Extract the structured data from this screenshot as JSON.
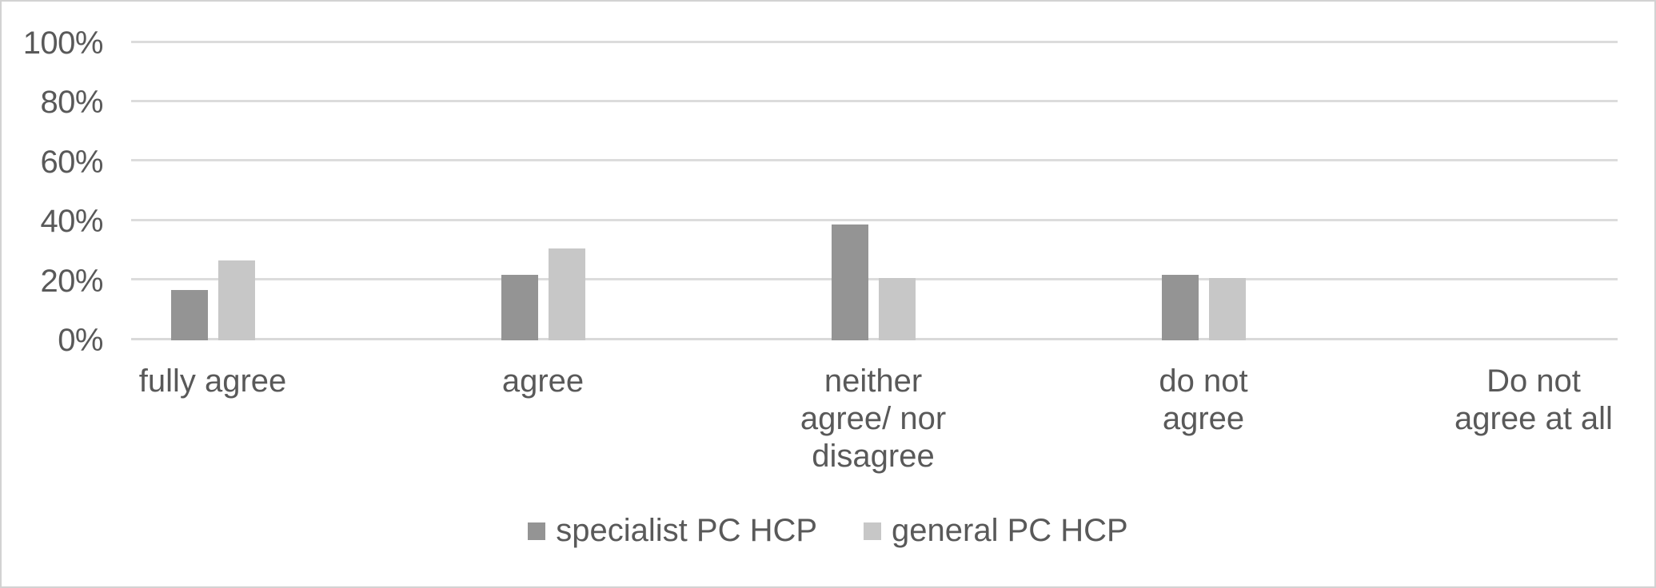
{
  "chart_data": {
    "type": "bar",
    "title": "",
    "xlabel": "",
    "ylabel": "",
    "unit": "%",
    "categories": [
      "fully agree",
      "agree",
      "neither agree/ nor disagree",
      "do not agree",
      "Do not agree at all"
    ],
    "category_label_lines": [
      [
        "fully agree"
      ],
      [
        "agree"
      ],
      [
        "neither",
        "agree/ nor",
        "disagree"
      ],
      [
        "do not",
        "agree"
      ],
      [
        "Do not",
        "agree at all"
      ]
    ],
    "series": [
      {
        "name": "specialist PC HCP",
        "color": "#949494",
        "values": [
          17,
          22,
          39,
          22,
          0
        ]
      },
      {
        "name": "general PC HCP",
        "color": "#c7c7c7",
        "values": [
          27,
          31,
          21,
          21,
          0
        ]
      }
    ],
    "y_axis": {
      "min": 0,
      "max": 100,
      "tick_step": 20,
      "tick_labels": [
        "0%",
        "20%",
        "40%",
        "60%",
        "80%",
        "100%"
      ]
    },
    "grid": "horizontal-gridlines-on",
    "legend_position": "bottom-center"
  },
  "colors": {
    "background": "#ffffff",
    "frame_border": "#d2d2d2",
    "gridline": "#dcdcdc",
    "axis_line": "#d9d9d9",
    "text": "#595959",
    "series_dark": "#949494",
    "series_light": "#c7c7c7"
  }
}
